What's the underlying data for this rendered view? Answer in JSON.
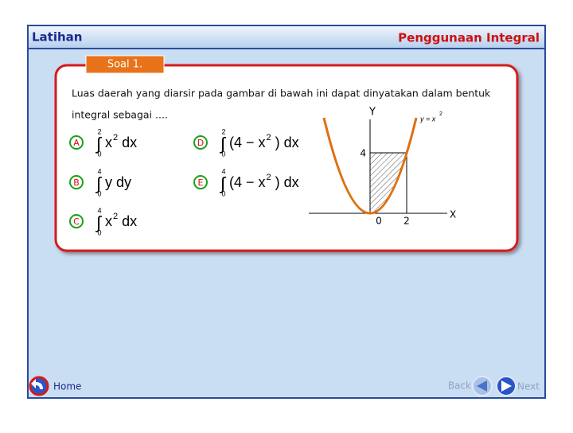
{
  "header": {
    "left": "Latihan",
    "right": "Penggunaan Integral"
  },
  "badge": "Soal 1.",
  "question": {
    "line1": "Luas daerah yang diarsir pada gambar di bawah ini dapat dinyatakan dalam bentuk",
    "line2": "integral sebagai ...."
  },
  "options": [
    {
      "letter": "A",
      "upper": "2",
      "lower": "0",
      "before": "x",
      "exponent": "2",
      "after": "dx"
    },
    {
      "letter": "B",
      "upper": "4",
      "lower": "0",
      "before": "y dy"
    },
    {
      "letter": "C",
      "upper": "4",
      "lower": "0",
      "before": "x",
      "exponent": "2",
      "after": "dx"
    },
    {
      "letter": "D",
      "upper": "2",
      "lower": "0",
      "before": "(4 − x",
      "exponent": "2",
      "after": ") dx"
    },
    {
      "letter": "E",
      "upper": "4",
      "lower": "0",
      "before": "(4 − x",
      "exponent": "2",
      "after": ") dx"
    }
  ],
  "graph": {
    "y_axis": "Y",
    "x_axis": "X",
    "curve": "y = x",
    "curve_exponent": "2",
    "y_mark": "4",
    "origin": "0",
    "x_mark": "2"
  },
  "nav": {
    "home": "Home",
    "back": "Back",
    "next": "Next"
  }
}
